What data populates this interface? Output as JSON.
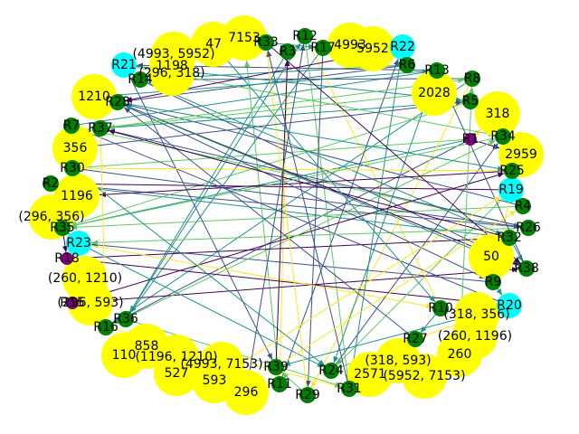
{
  "graph": {
    "colors": {
      "yellow": "#ffff00",
      "cyan": "#00ffff",
      "green": "#008000",
      "purple": "#800080",
      "edge_palette": [
        "#440154",
        "#3b528b",
        "#21918c",
        "#5ec962",
        "#fde725"
      ]
    },
    "nodes": [
      {
        "id": "7153",
        "label": "7153",
        "kind": "yellow"
      },
      {
        "id": "47",
        "label": "47",
        "kind": "yellow"
      },
      {
        "id": "4993_5952",
        "label": "(4993, 5952)",
        "kind": "yellow"
      },
      {
        "id": "1198",
        "label": "1198",
        "kind": "yellow"
      },
      {
        "id": "296_318",
        "label": "(296, 318)",
        "kind": "yellow"
      },
      {
        "id": "1210",
        "label": "1210",
        "kind": "yellow"
      },
      {
        "id": "356",
        "label": "356",
        "kind": "yellow"
      },
      {
        "id": "1196",
        "label": "1196",
        "kind": "yellow"
      },
      {
        "id": "296_356",
        "label": "(296, 356)",
        "kind": "yellow"
      },
      {
        "id": "260_1210",
        "label": "(260, 1210)",
        "kind": "yellow"
      },
      {
        "id": "296_593",
        "label": "(296, 593)",
        "kind": "yellow"
      },
      {
        "id": "110",
        "label": "110",
        "kind": "yellow"
      },
      {
        "id": "858",
        "label": "858",
        "kind": "yellow"
      },
      {
        "id": "1196_1210",
        "label": "(1196, 1210)",
        "kind": "yellow"
      },
      {
        "id": "527",
        "label": "527",
        "kind": "yellow"
      },
      {
        "id": "4993_7153",
        "label": "(4993, 7153)",
        "kind": "yellow"
      },
      {
        "id": "593",
        "label": "593",
        "kind": "yellow"
      },
      {
        "id": "296",
        "label": "296",
        "kind": "yellow"
      },
      {
        "id": "2571",
        "label": "2571",
        "kind": "yellow"
      },
      {
        "id": "318_593",
        "label": "(318, 593)",
        "kind": "yellow"
      },
      {
        "id": "5952_7153",
        "label": "(5952, 7153)",
        "kind": "yellow"
      },
      {
        "id": "260",
        "label": "260",
        "kind": "yellow"
      },
      {
        "id": "260_1196",
        "label": "(260, 1196)",
        "kind": "yellow"
      },
      {
        "id": "318_356",
        "label": "(318, 356)",
        "kind": "yellow"
      },
      {
        "id": "50",
        "label": "50",
        "kind": "yellow"
      },
      {
        "id": "2959",
        "label": "2959",
        "kind": "yellow"
      },
      {
        "id": "318",
        "label": "318",
        "kind": "yellow"
      },
      {
        "id": "2028",
        "label": "2028",
        "kind": "yellow"
      },
      {
        "id": "5952",
        "label": "5952",
        "kind": "yellow"
      },
      {
        "id": "4993",
        "label": "4993",
        "kind": "yellow"
      },
      {
        "id": "R22",
        "label": "R22",
        "kind": "cyan"
      },
      {
        "id": "R21",
        "label": "R21",
        "kind": "cyan"
      },
      {
        "id": "R19",
        "label": "R19",
        "kind": "cyan"
      },
      {
        "id": "R23",
        "label": "R23",
        "kind": "cyan"
      },
      {
        "id": "R20",
        "label": "R20",
        "kind": "cyan"
      },
      {
        "id": "R12",
        "label": "R12",
        "kind": "green"
      },
      {
        "id": "R33",
        "label": "R33",
        "kind": "green"
      },
      {
        "id": "R3",
        "label": "R3",
        "kind": "green"
      },
      {
        "id": "R17",
        "label": "R17",
        "kind": "green"
      },
      {
        "id": "R6",
        "label": "R6",
        "kind": "green"
      },
      {
        "id": "R13",
        "label": "R13",
        "kind": "green"
      },
      {
        "id": "R8",
        "label": "R8",
        "kind": "green"
      },
      {
        "id": "R5",
        "label": "R5",
        "kind": "green"
      },
      {
        "id": "R14",
        "label": "R14",
        "kind": "green"
      },
      {
        "id": "R28",
        "label": "R28",
        "kind": "green"
      },
      {
        "id": "R7",
        "label": "R7",
        "kind": "green"
      },
      {
        "id": "R37",
        "label": "R37",
        "kind": "green"
      },
      {
        "id": "R30",
        "label": "R30",
        "kind": "green"
      },
      {
        "id": "R2",
        "label": "R2",
        "kind": "green"
      },
      {
        "id": "R35",
        "label": "R35",
        "kind": "green"
      },
      {
        "id": "R34",
        "label": "R34",
        "kind": "green"
      },
      {
        "id": "R25",
        "label": "R25",
        "kind": "green"
      },
      {
        "id": "R4",
        "label": "R4",
        "kind": "green"
      },
      {
        "id": "R26",
        "label": "R26",
        "kind": "green"
      },
      {
        "id": "R32",
        "label": "R32",
        "kind": "green"
      },
      {
        "id": "R38",
        "label": "R38",
        "kind": "green"
      },
      {
        "id": "R9",
        "label": "R9",
        "kind": "green"
      },
      {
        "id": "R10",
        "label": "R10",
        "kind": "green"
      },
      {
        "id": "R27",
        "label": "R27",
        "kind": "green"
      },
      {
        "id": "R36",
        "label": "R36",
        "kind": "green"
      },
      {
        "id": "R16",
        "label": "R16",
        "kind": "green"
      },
      {
        "id": "R39",
        "label": "R39",
        "kind": "green"
      },
      {
        "id": "R11",
        "label": "R11",
        "kind": "green"
      },
      {
        "id": "R29",
        "label": "R29",
        "kind": "green"
      },
      {
        "id": "R24",
        "label": "R24",
        "kind": "green"
      },
      {
        "id": "R31",
        "label": "R31",
        "kind": "green"
      },
      {
        "id": "R1",
        "label": "R1",
        "kind": "purple"
      },
      {
        "id": "R18",
        "label": "R18",
        "kind": "purple"
      },
      {
        "id": "R15",
        "label": "R15",
        "kind": "purple"
      }
    ],
    "edges": [
      [
        "R1",
        "2959",
        0
      ],
      [
        "R1",
        "R16",
        1
      ],
      [
        "R1",
        "R35",
        2
      ],
      [
        "R1",
        "R30",
        3
      ],
      [
        "R1",
        "318",
        4
      ],
      [
        "R2",
        "1196",
        0
      ],
      [
        "R2",
        "R26",
        1
      ],
      [
        "R2",
        "R32",
        2
      ],
      [
        "R3",
        "4993",
        3
      ],
      [
        "R3",
        "R36",
        2
      ],
      [
        "R3",
        "R11",
        4
      ],
      [
        "R4",
        "R35",
        3
      ],
      [
        "R4",
        "R28",
        1
      ],
      [
        "R5",
        "R37",
        2
      ],
      [
        "R5",
        "R35",
        3
      ],
      [
        "R6",
        "R28",
        1
      ],
      [
        "R6",
        "R14",
        2
      ],
      [
        "R7",
        "R13",
        2
      ],
      [
        "R7",
        "R26",
        3
      ],
      [
        "R8",
        "R14",
        1
      ],
      [
        "R8",
        "R16",
        2
      ],
      [
        "R8",
        "R29",
        4
      ],
      [
        "R9",
        "R23",
        1
      ],
      [
        "R9",
        "R20",
        2
      ],
      [
        "R10",
        "R12",
        4
      ],
      [
        "R10",
        "R27",
        2
      ],
      [
        "R11",
        "R22",
        1
      ],
      [
        "R11",
        "7153",
        3
      ],
      [
        "R12",
        "R31",
        3
      ],
      [
        "R13",
        "R24",
        2
      ],
      [
        "R13",
        "R21",
        1
      ],
      [
        "R14",
        "R38",
        1
      ],
      [
        "R14",
        "R32",
        2
      ],
      [
        "R15",
        "R38",
        0
      ],
      [
        "R15",
        "R25",
        0
      ],
      [
        "R16",
        "R34",
        3
      ],
      [
        "R16",
        "R31",
        4
      ],
      [
        "R17",
        "R29",
        1
      ],
      [
        "R17",
        "R36",
        2
      ],
      [
        "R18",
        "R20",
        0
      ],
      [
        "R18",
        "R32",
        0
      ],
      [
        "R19",
        "R2",
        0
      ],
      [
        "R19",
        "R24",
        3
      ],
      [
        "R19",
        "R9",
        4
      ],
      [
        "R20",
        "R39",
        2
      ],
      [
        "R20",
        "R7",
        1
      ],
      [
        "R21",
        "R39",
        1
      ],
      [
        "R21",
        "R34",
        3
      ],
      [
        "R21",
        "R5",
        2
      ],
      [
        "R22",
        "R6",
        4
      ],
      [
        "R22",
        "R28",
        0
      ],
      [
        "R23",
        "R24",
        2
      ],
      [
        "R23",
        "R10",
        4
      ],
      [
        "R24",
        "R27",
        3
      ],
      [
        "R24",
        "R34",
        1
      ],
      [
        "R25",
        "1196",
        0
      ],
      [
        "R25",
        "R30",
        4
      ],
      [
        "R26",
        "R37",
        1
      ],
      [
        "R26",
        "R23",
        3
      ],
      [
        "R27",
        "R28",
        1
      ],
      [
        "R27",
        "R20",
        4
      ],
      [
        "R28",
        "R25",
        2
      ],
      [
        "R28",
        "R9",
        1
      ],
      [
        "R29",
        "R33",
        4
      ],
      [
        "R29",
        "R39",
        3
      ],
      [
        "R30",
        "R26",
        1
      ],
      [
        "R30",
        "R24",
        2
      ],
      [
        "R31",
        "R33",
        1
      ],
      [
        "R31",
        "R22",
        2
      ],
      [
        "R32",
        "R37",
        0
      ],
      [
        "R32",
        "R38",
        2
      ],
      [
        "R33",
        "R38",
        0
      ],
      [
        "R33",
        "R17",
        2
      ],
      [
        "R34",
        "R19",
        1
      ],
      [
        "R34",
        "R35",
        3
      ],
      [
        "R35",
        "R23",
        1
      ],
      [
        "R35",
        "R18",
        0
      ],
      [
        "R36",
        "R12",
        2
      ],
      [
        "R36",
        "R31",
        3
      ],
      [
        "R37",
        "R16",
        4
      ],
      [
        "R37",
        "R8",
        3
      ],
      [
        "R38",
        "R28",
        0
      ],
      [
        "R38",
        "R13",
        1
      ],
      [
        "R39",
        "R3",
        0
      ],
      [
        "R39",
        "R4",
        4
      ],
      [
        "47",
        "R10",
        2
      ],
      [
        "356",
        "R5",
        1
      ],
      [
        "1210",
        "R13",
        2
      ],
      [
        "2028",
        "R37",
        3
      ],
      [
        "593",
        "R19",
        4
      ],
      [
        "296",
        "R12",
        1
      ],
      [
        "50",
        "R28",
        2
      ],
      [
        "260",
        "R8",
        3
      ]
    ]
  }
}
